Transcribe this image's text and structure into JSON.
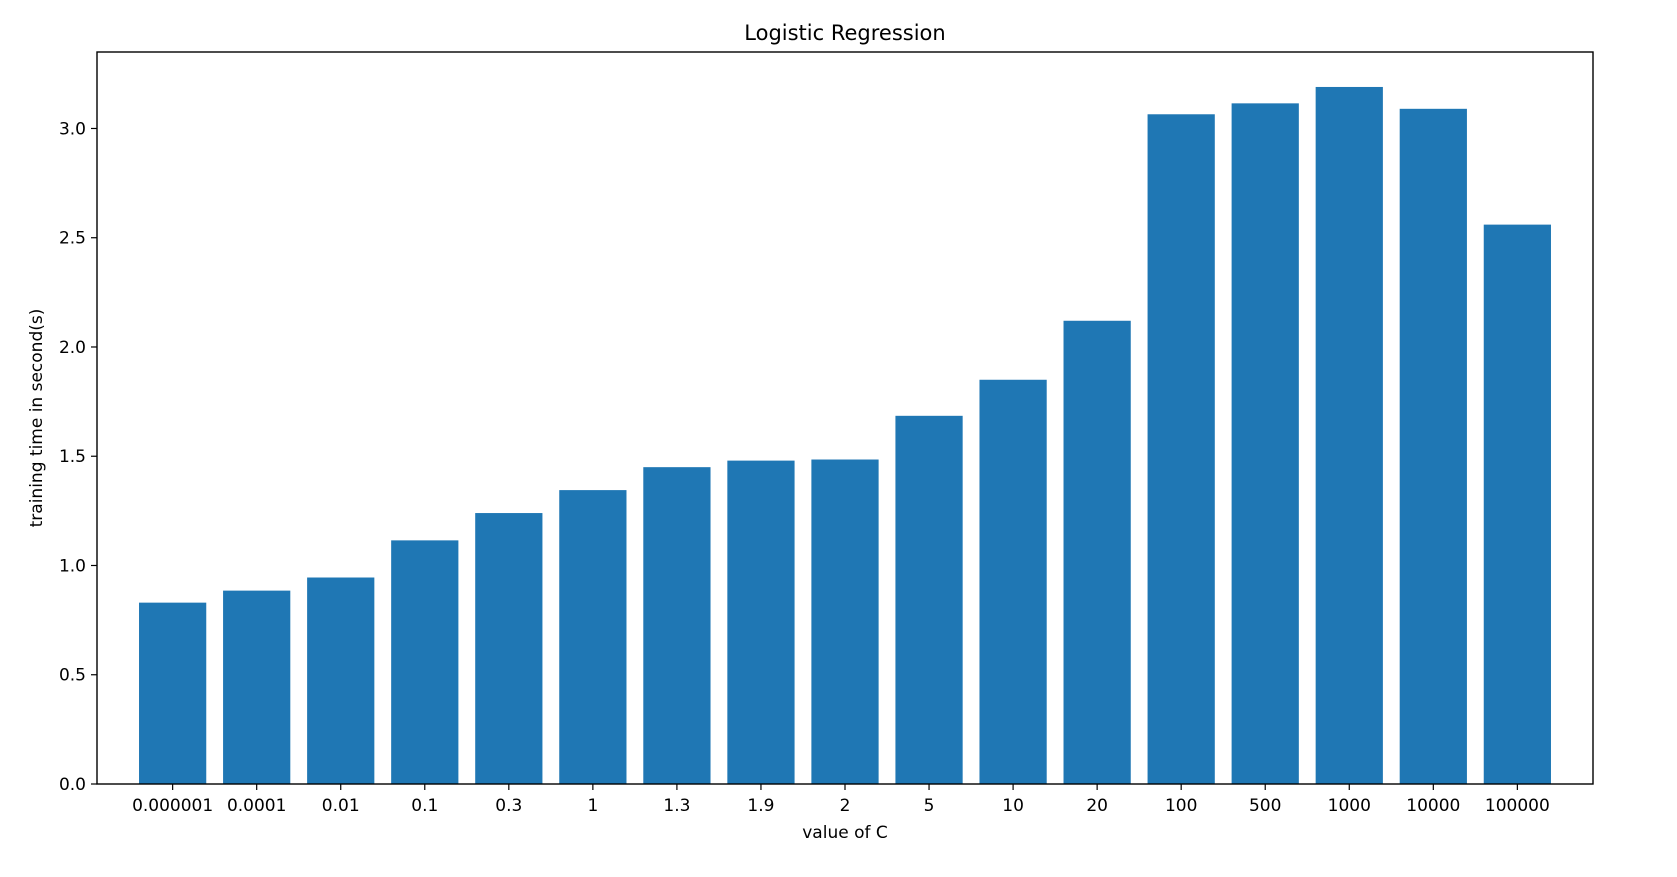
{
  "chart_data": {
    "type": "bar",
    "title": "Logistic Regression",
    "xlabel": "value of C",
    "ylabel": "training time in second(s)",
    "categories": [
      "0.000001",
      "0.0001",
      "0.01",
      "0.1",
      "0.3",
      "1",
      "1.3",
      "1.9",
      "2",
      "5",
      "10",
      "20",
      "100",
      "500",
      "1000",
      "10000",
      "100000"
    ],
    "values": [
      0.83,
      0.885,
      0.945,
      1.115,
      1.24,
      1.345,
      1.45,
      1.48,
      1.485,
      1.685,
      1.85,
      2.12,
      3.065,
      3.115,
      3.19,
      3.09,
      2.56
    ],
    "ylim": [
      0,
      3.35
    ],
    "yticks": [
      {
        "value": 0.0,
        "label": "0.0"
      },
      {
        "value": 0.5,
        "label": "0.5"
      },
      {
        "value": 1.0,
        "label": "1.0"
      },
      {
        "value": 1.5,
        "label": "1.5"
      },
      {
        "value": 2.0,
        "label": "2.0"
      },
      {
        "value": 2.5,
        "label": "2.5"
      },
      {
        "value": 3.0,
        "label": "3.0"
      }
    ],
    "grid": false,
    "bar_color": "#1f77b4"
  }
}
